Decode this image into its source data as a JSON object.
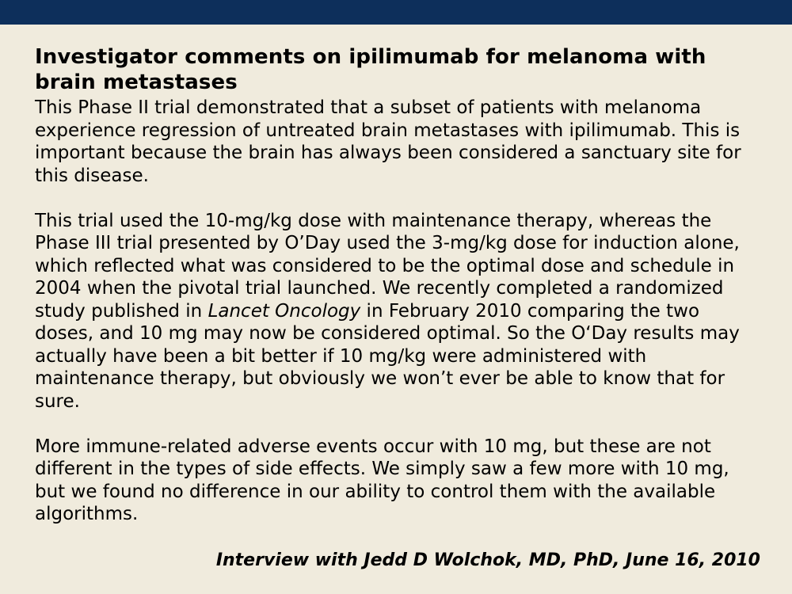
{
  "slide": {
    "title": "Investigator comments on ipilimumab for melanoma with brain metastases",
    "paragraph1": "This Phase II trial demonstrated that a subset of patients with melanoma experience regression of untreated brain metastases with ipilimumab. This is important because the brain has always been considered a sanctuary site for this disease.",
    "paragraph2": {
      "before_italic": "This trial used the 10-mg/kg dose with maintenance therapy, whereas the Phase III trial presented by O’Day used the 3-mg/kg dose for induction alone, which reflected what was considered to be the optimal dose and schedule in 2004 when the pivotal trial launched. We recently completed a randomized study published in ",
      "italic": "Lancet Oncology",
      "after_italic": " in February 2010 comparing the two doses, and 10 mg may now be considered optimal. So the O‘Day results may actually have been a bit better if 10 mg/kg were administered with maintenance therapy, but obviously we won’t ever be able to know that for sure."
    },
    "paragraph3": "More immune-related adverse events occur with 10 mg, but these are not different in the types of side effects. We simply saw a few more with 10 mg, but we found no difference in our ability to control them with the available algorithms.",
    "attribution": "Interview with Jedd D Wolchok, MD, PhD, June 16, 2010"
  },
  "colors": {
    "background": "#f0ebdd",
    "top_bar": "#0d2f5b",
    "text": "#000000"
  }
}
